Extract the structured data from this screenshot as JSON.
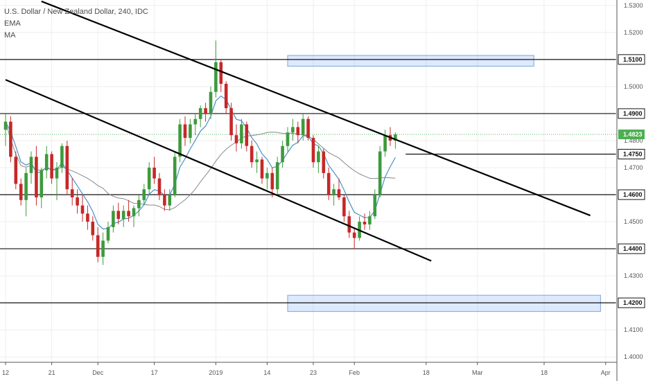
{
  "chart_data": {
    "type": "candlestick",
    "title": "U.S. Dollar / New Zealand Dollar, 240, IDC",
    "indicators": [
      "EMA",
      "MA"
    ],
    "y_range": [
      1.398,
      1.532
    ],
    "y_ticks": [
      {
        "value": 1.53,
        "label": "1.5300"
      },
      {
        "value": 1.52,
        "label": "1.5200"
      },
      {
        "value": 1.5,
        "label": "1.5000"
      },
      {
        "value": 1.48,
        "label": "1.4800"
      },
      {
        "value": 1.47,
        "label": "1.4700"
      },
      {
        "value": 1.45,
        "label": "1.4500"
      },
      {
        "value": 1.43,
        "label": "1.4300"
      },
      {
        "value": 1.41,
        "label": "1.4100"
      },
      {
        "value": 1.4,
        "label": "1.4000"
      }
    ],
    "x_ticks": [
      {
        "t": 0,
        "label": "12"
      },
      {
        "t": 9,
        "label": "21"
      },
      {
        "t": 18,
        "label": "Dec"
      },
      {
        "t": 29,
        "label": "17"
      },
      {
        "t": 41,
        "label": "2019"
      },
      {
        "t": 51,
        "label": "14"
      },
      {
        "t": 60,
        "label": "23"
      },
      {
        "t": 68,
        "label": "Feb"
      },
      {
        "t": 82,
        "label": "18"
      },
      {
        "t": 92,
        "label": "Mar"
      },
      {
        "t": 105,
        "label": "18"
      },
      {
        "t": 117,
        "label": "Apr"
      }
    ],
    "horizontal_levels": [
      {
        "value": 1.51,
        "label": "1.5100",
        "x_end_t": 119
      },
      {
        "value": 1.49,
        "label": "1.4900",
        "x_end_t": 119
      },
      {
        "value": 1.46,
        "label": "1.4600",
        "x_end_t": 119
      },
      {
        "value": 1.44,
        "label": "1.4400",
        "x_end_t": 119
      },
      {
        "value": 1.42,
        "label": "1.4200",
        "x_end_t": 119
      },
      {
        "value": 1.475,
        "label": "1.4750",
        "x_start_t": 78,
        "x_end_t": 119
      }
    ],
    "current_price": {
      "value": 1.4823,
      "label": "1.4823",
      "color": "#4caf50"
    },
    "zones": [
      {
        "t_start": 55,
        "t_end": 103,
        "y_low": 1.5075,
        "y_high": 1.5115
      },
      {
        "t_start": 55,
        "t_end": 116,
        "y_low": 1.4168,
        "y_high": 1.4228
      }
    ],
    "trendlines": [
      {
        "t1": 7,
        "y1": 1.5315,
        "t2": 114,
        "y2": 1.4523
      },
      {
        "t1": 0,
        "y1": 1.5025,
        "t2": 83,
        "y2": 1.4355
      }
    ],
    "ohlc": [
      [
        1.484,
        1.49,
        1.478,
        1.487
      ],
      [
        1.487,
        1.489,
        1.472,
        1.474
      ],
      [
        1.474,
        1.476,
        1.462,
        1.464
      ],
      [
        1.464,
        1.466,
        1.456,
        1.458
      ],
      [
        1.458,
        1.47,
        1.452,
        1.468
      ],
      [
        1.468,
        1.476,
        1.464,
        1.474
      ],
      [
        1.474,
        1.478,
        1.456,
        1.459
      ],
      [
        1.459,
        1.47,
        1.455,
        1.469
      ],
      [
        1.469,
        1.478,
        1.466,
        1.475
      ],
      [
        1.475,
        1.476,
        1.464,
        1.466
      ],
      [
        1.466,
        1.472,
        1.458,
        1.47
      ],
      [
        1.47,
        1.479,
        1.468,
        1.478
      ],
      [
        1.478,
        1.48,
        1.46,
        1.462
      ],
      [
        1.462,
        1.466,
        1.456,
        1.459
      ],
      [
        1.459,
        1.462,
        1.453,
        1.456
      ],
      [
        1.456,
        1.46,
        1.45,
        1.453
      ],
      [
        1.453,
        1.456,
        1.447,
        1.45
      ],
      [
        1.45,
        1.452,
        1.443,
        1.445
      ],
      [
        1.445,
        1.448,
        1.435,
        1.437
      ],
      [
        1.437,
        1.446,
        1.434,
        1.443
      ],
      [
        1.443,
        1.45,
        1.442,
        1.448
      ],
      [
        1.448,
        1.456,
        1.446,
        1.454
      ],
      [
        1.454,
        1.457,
        1.449,
        1.451
      ],
      [
        1.451,
        1.456,
        1.448,
        1.454
      ],
      [
        1.454,
        1.458,
        1.45,
        1.452
      ],
      [
        1.452,
        1.456,
        1.448,
        1.455
      ],
      [
        1.455,
        1.46,
        1.452,
        1.458
      ],
      [
        1.458,
        1.464,
        1.456,
        1.462
      ],
      [
        1.462,
        1.472,
        1.46,
        1.47
      ],
      [
        1.47,
        1.474,
        1.464,
        1.466
      ],
      [
        1.466,
        1.468,
        1.458,
        1.46
      ],
      [
        1.46,
        1.462,
        1.454,
        1.456
      ],
      [
        1.456,
        1.462,
        1.454,
        1.46
      ],
      [
        1.46,
        1.476,
        1.459,
        1.474
      ],
      [
        1.474,
        1.488,
        1.472,
        1.486
      ],
      [
        1.486,
        1.489,
        1.478,
        1.481
      ],
      [
        1.481,
        1.488,
        1.479,
        1.486
      ],
      [
        1.486,
        1.49,
        1.482,
        1.488
      ],
      [
        1.488,
        1.493,
        1.485,
        1.492
      ],
      [
        1.492,
        1.494,
        1.487,
        1.49
      ],
      [
        1.49,
        1.5,
        1.488,
        1.498
      ],
      [
        1.498,
        1.517,
        1.496,
        1.509
      ],
      [
        1.509,
        1.51,
        1.498,
        1.501
      ],
      [
        1.501,
        1.502,
        1.49,
        1.492
      ],
      [
        1.492,
        1.494,
        1.48,
        1.482
      ],
      [
        1.482,
        1.486,
        1.476,
        1.479
      ],
      [
        1.479,
        1.488,
        1.477,
        1.486
      ],
      [
        1.486,
        1.487,
        1.476,
        1.478
      ],
      [
        1.478,
        1.48,
        1.47,
        1.472
      ],
      [
        1.472,
        1.476,
        1.468,
        1.473
      ],
      [
        1.473,
        1.474,
        1.464,
        1.466
      ],
      [
        1.466,
        1.47,
        1.462,
        1.468
      ],
      [
        1.468,
        1.47,
        1.459,
        1.462
      ],
      [
        1.462,
        1.474,
        1.46,
        1.472
      ],
      [
        1.472,
        1.48,
        1.47,
        1.478
      ],
      [
        1.478,
        1.485,
        1.476,
        1.483
      ],
      [
        1.483,
        1.488,
        1.48,
        1.485
      ],
      [
        1.485,
        1.487,
        1.479,
        1.482
      ],
      [
        1.482,
        1.49,
        1.48,
        1.488
      ],
      [
        1.488,
        1.489,
        1.48,
        1.481
      ],
      [
        1.481,
        1.482,
        1.47,
        1.472
      ],
      [
        1.472,
        1.478,
        1.468,
        1.476
      ],
      [
        1.476,
        1.477,
        1.466,
        1.468
      ],
      [
        1.468,
        1.47,
        1.458,
        1.46
      ],
      [
        1.46,
        1.464,
        1.456,
        1.462
      ],
      [
        1.462,
        1.466,
        1.458,
        1.459
      ],
      [
        1.459,
        1.46,
        1.45,
        1.452
      ],
      [
        1.452,
        1.454,
        1.444,
        1.446
      ],
      [
        1.446,
        1.448,
        1.44,
        1.444
      ],
      [
        1.444,
        1.452,
        1.443,
        1.45
      ],
      [
        1.45,
        1.453,
        1.447,
        1.449
      ],
      [
        1.449,
        1.454,
        1.447,
        1.452
      ],
      [
        1.452,
        1.462,
        1.451,
        1.46
      ],
      [
        1.46,
        1.478,
        1.459,
        1.476
      ],
      [
        1.476,
        1.484,
        1.474,
        1.482
      ],
      [
        1.482,
        1.485,
        1.478,
        1.48
      ],
      [
        1.48,
        1.483,
        1.477,
        1.4823
      ]
    ]
  }
}
